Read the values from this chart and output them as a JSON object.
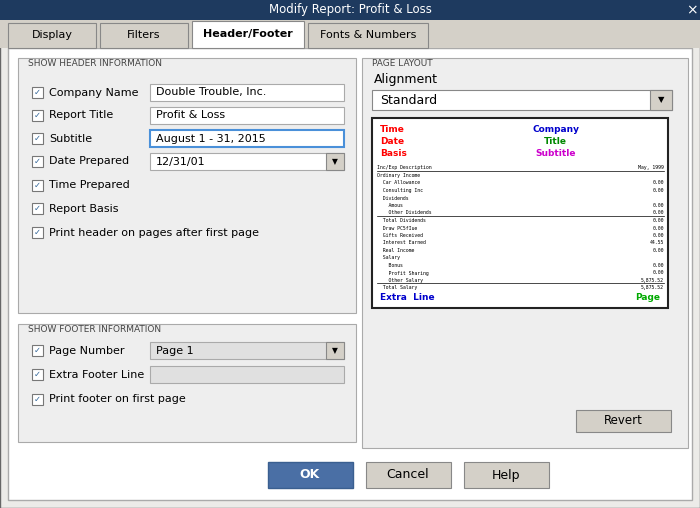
{
  "title": "Modify Report: Profit & Loss",
  "title_bg": "#1e3a5f",
  "title_fg": "#ffffff",
  "dialog_bg": "#ecebe8",
  "body_bg": "#ffffff",
  "tab_bg": "#d4d0c8",
  "tabs": [
    "Display",
    "Filters",
    "Header/Footer",
    "Fonts & Numbers"
  ],
  "active_tab": "Header/Footer",
  "section1_label": "SHOW HEADER INFORMATION",
  "checkboxes_left": [
    {
      "label": "Company Name",
      "checked": true,
      "has_field": true,
      "field_value": "Double Trouble, Inc.",
      "has_dropdown": false,
      "field_active": false
    },
    {
      "label": "Report Title",
      "checked": true,
      "has_field": true,
      "field_value": "Profit & Loss",
      "has_dropdown": false,
      "field_active": false
    },
    {
      "label": "Subtitle",
      "checked": true,
      "has_field": true,
      "field_value": "August 1 - 31, 2015",
      "has_dropdown": false,
      "field_active": true
    },
    {
      "label": "Date Prepared",
      "checked": true,
      "has_field": true,
      "field_value": "12/31/01",
      "has_dropdown": true,
      "field_active": false
    },
    {
      "label": "Time Prepared",
      "checked": true,
      "has_field": false,
      "field_value": "",
      "has_dropdown": false,
      "field_active": false
    },
    {
      "label": "Report Basis",
      "checked": true,
      "has_field": false,
      "field_value": "",
      "has_dropdown": false,
      "field_active": false
    },
    {
      "label": "Print header on pages after first page",
      "checked": true,
      "has_field": false,
      "field_value": "",
      "has_dropdown": false,
      "field_active": false
    }
  ],
  "section2_label": "SHOW FOOTER INFORMATION",
  "checkboxes_footer": [
    {
      "label": "Page Number",
      "checked": true,
      "has_field": true,
      "field_value": "Page 1",
      "has_dropdown": true,
      "field_active": false
    },
    {
      "label": "Extra Footer Line",
      "checked": true,
      "has_field": true,
      "field_value": "",
      "has_dropdown": false,
      "field_active": false
    },
    {
      "label": "Print footer on first page",
      "checked": true,
      "has_field": false,
      "field_value": "",
      "has_dropdown": false,
      "field_active": false
    }
  ],
  "page_layout_label": "PAGE LAYOUT",
  "alignment_label": "Alignment",
  "alignment_value": "Standard",
  "preview_header_left": [
    "Time",
    "Date",
    "Basis"
  ],
  "preview_header_left_color": "#ff0000",
  "preview_company": "Company",
  "preview_company_color": "#0000cc",
  "preview_title": "Title",
  "preview_title_color": "#008800",
  "preview_subtitle": "Subtitle",
  "preview_subtitle_color": "#cc00cc",
  "preview_footer_left": "Extra  Line",
  "preview_footer_left_color": "#0000cc",
  "preview_footer_right": "Page",
  "preview_footer_right_color": "#00aa00",
  "btn_ok": "OK",
  "btn_cancel": "Cancel",
  "btn_help": "Help",
  "btn_revert": "Revert",
  "ok_bg": "#4a6fa5",
  "ok_fg": "#ffffff"
}
